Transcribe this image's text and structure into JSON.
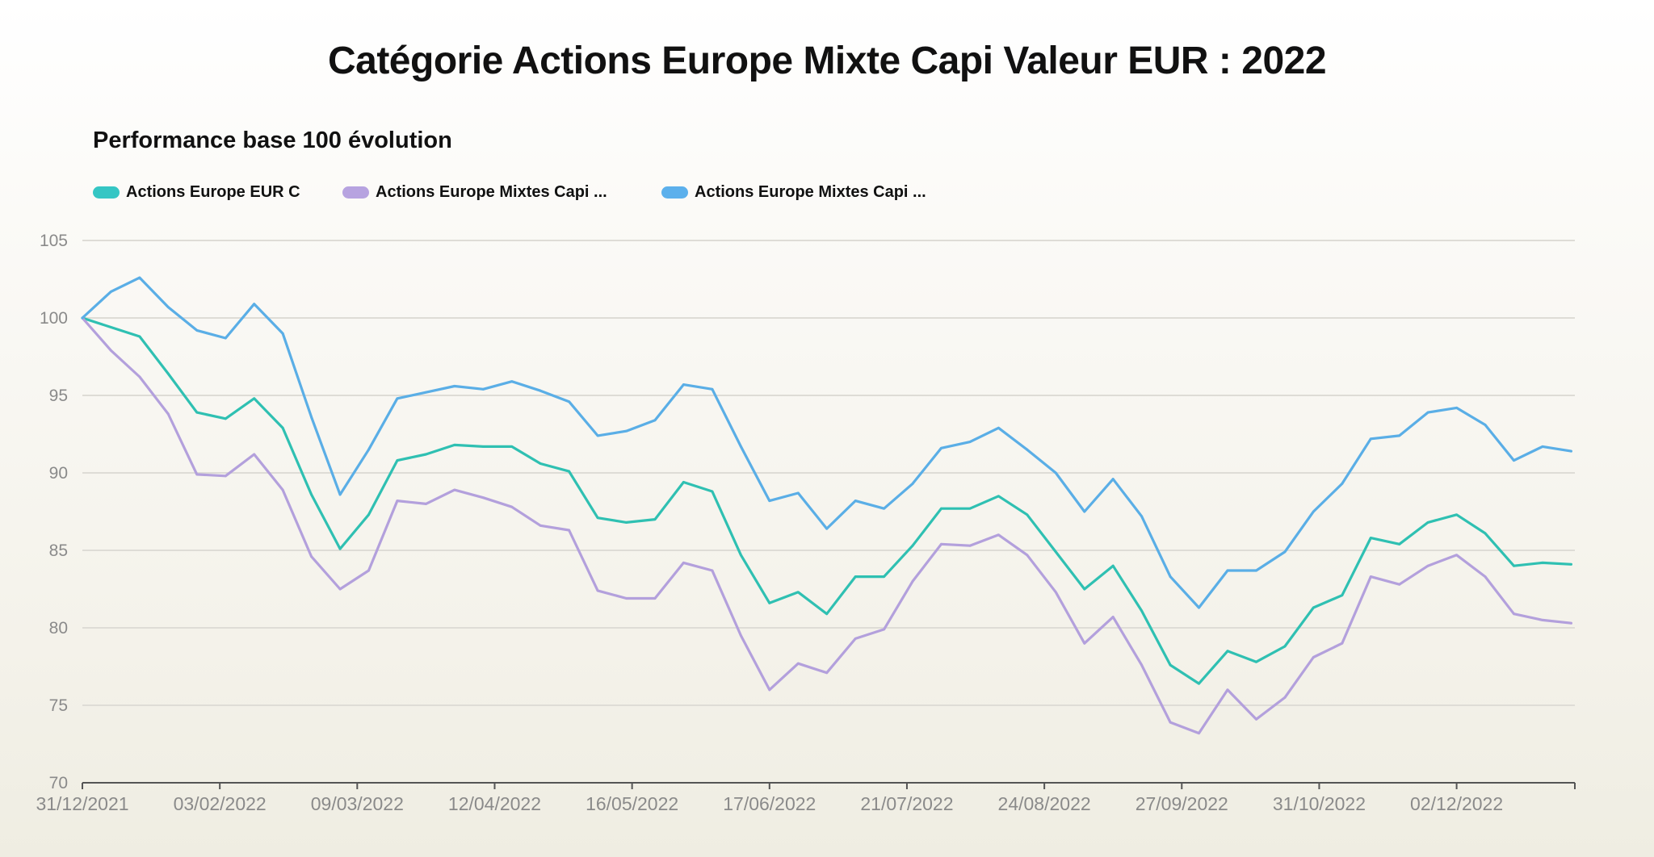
{
  "title": "Catégorie Actions Europe Mixte Capi Valeur EUR : 2022",
  "subtitle": "Performance base 100 évolution",
  "chart_data": {
    "type": "line",
    "title": "Performance base 100 évolution",
    "xlabel": "",
    "ylabel": "",
    "ylim": [
      70,
      105
    ],
    "yticks": [
      "70",
      "75",
      "80",
      "85",
      "90",
      "95",
      "100",
      "105"
    ],
    "xtick_labels": [
      "31/12/2021",
      "03/02/2022",
      "09/03/2022",
      "12/04/2022",
      "16/05/2022",
      "17/06/2022",
      "21/07/2022",
      "24/08/2022",
      "27/09/2022",
      "31/10/2022",
      "02/12/2022"
    ],
    "grid": "horizontal",
    "legend": "top-left",
    "x": [
      "31/12/2021",
      "07/01/2022",
      "14/01/2022",
      "21/01/2022",
      "28/01/2022",
      "04/02/2022",
      "11/02/2022",
      "18/02/2022",
      "25/02/2022",
      "04/03/2022",
      "11/03/2022",
      "18/03/2022",
      "25/03/2022",
      "01/04/2022",
      "08/04/2022",
      "15/04/2022",
      "22/04/2022",
      "29/04/2022",
      "06/05/2022",
      "13/05/2022",
      "20/05/2022",
      "27/05/2022",
      "03/06/2022",
      "10/06/2022",
      "17/06/2022",
      "24/06/2022",
      "01/07/2022",
      "08/07/2022",
      "15/07/2022",
      "22/07/2022",
      "29/07/2022",
      "05/08/2022",
      "12/08/2022",
      "19/08/2022",
      "26/08/2022",
      "02/09/2022",
      "09/09/2022",
      "16/09/2022",
      "23/09/2022",
      "30/09/2022",
      "07/10/2022",
      "14/10/2022",
      "21/10/2022",
      "28/10/2022",
      "04/11/2022",
      "11/11/2022",
      "18/11/2022",
      "25/11/2022",
      "02/12/2022",
      "09/12/2022",
      "16/12/2022",
      "23/12/2022",
      "30/12/2022"
    ],
    "series": [
      {
        "name": "Actions Europe EUR C",
        "color": "#2fc0b2",
        "values": [
          100,
          99.4,
          98.8,
          96.4,
          93.9,
          93.5,
          94.8,
          92.9,
          88.6,
          85.1,
          87.3,
          90.8,
          91.2,
          91.8,
          91.7,
          91.7,
          90.6,
          90.1,
          87.1,
          86.8,
          87.0,
          89.4,
          88.8,
          84.7,
          81.6,
          82.3,
          80.9,
          83.3,
          83.3,
          85.3,
          87.7,
          87.7,
          88.5,
          87.3,
          84.9,
          82.5,
          84.0,
          81.1,
          77.6,
          76.4,
          78.5,
          77.8,
          78.8,
          81.3,
          82.1,
          85.8,
          85.4,
          86.8,
          87.3,
          86.1,
          84.0,
          84.2,
          84.1
        ]
      },
      {
        "name": "Actions Europe Mixtes Capi ...",
        "color": "#b3a0dc",
        "values": [
          100,
          97.9,
          96.2,
          93.8,
          89.9,
          89.8,
          91.2,
          88.9,
          84.6,
          82.5,
          83.7,
          88.2,
          88.0,
          88.9,
          88.4,
          87.8,
          86.6,
          86.3,
          82.4,
          81.9,
          81.9,
          84.2,
          83.7,
          79.5,
          76.0,
          77.7,
          77.1,
          79.3,
          79.9,
          83.0,
          85.4,
          85.3,
          86.0,
          84.7,
          82.3,
          79.0,
          80.7,
          77.6,
          73.9,
          73.2,
          76.0,
          74.1,
          75.5,
          78.1,
          79.0,
          83.3,
          82.8,
          84.0,
          84.7,
          83.3,
          80.9,
          80.5,
          80.3
        ]
      },
      {
        "name": "Actions Europe Mixtes Capi ...",
        "color": "#5aaee6",
        "values": [
          100,
          101.7,
          102.6,
          100.7,
          99.2,
          98.7,
          100.9,
          99.0,
          93.6,
          88.6,
          91.5,
          94.8,
          95.2,
          95.6,
          95.4,
          95.9,
          95.3,
          94.6,
          92.4,
          92.7,
          93.4,
          95.7,
          95.4,
          91.7,
          88.2,
          88.7,
          86.4,
          88.2,
          87.7,
          89.3,
          91.6,
          92.0,
          92.9,
          91.5,
          90.0,
          87.5,
          89.6,
          87.2,
          83.3,
          81.3,
          83.7,
          83.7,
          84.9,
          87.5,
          89.3,
          92.2,
          92.4,
          93.9,
          94.2,
          93.1,
          90.8,
          91.7,
          91.4
        ]
      }
    ]
  }
}
